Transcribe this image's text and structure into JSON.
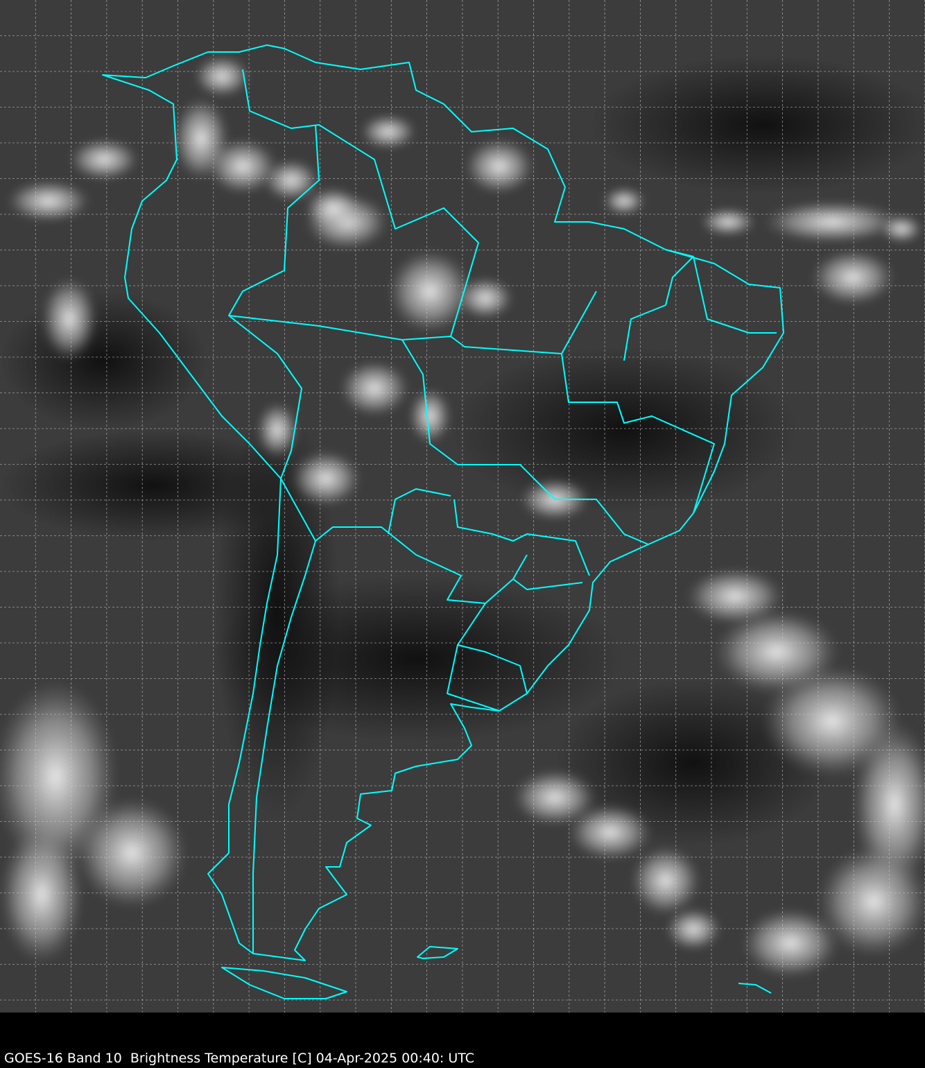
{
  "caption": "GOES-16 Band 10  Brightness Temperature [C] 04-Apr-2025 00:40: UTC",
  "colors": {
    "coastline": "#00ffff",
    "grid": "#c8c8c8",
    "background": "#000000",
    "caption_text": "#ffffff"
  },
  "map": {
    "region": "South America",
    "product": "infrared brightness temperature grayscale",
    "grid": true,
    "grid_style": "dashed"
  }
}
